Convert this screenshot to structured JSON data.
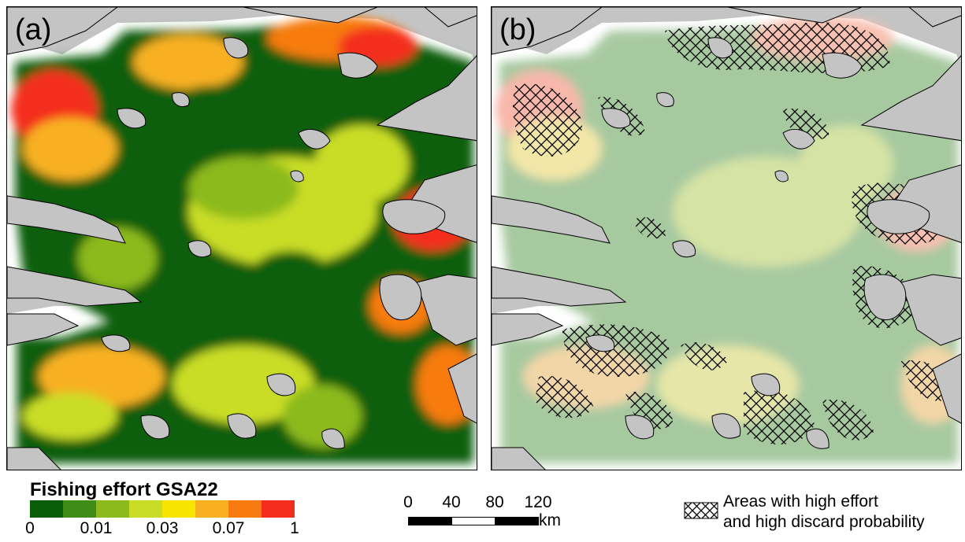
{
  "panels": {
    "a": {
      "label": "(a)"
    },
    "b": {
      "label": "(b)"
    }
  },
  "legend": {
    "title": "Fishing effort GSA22",
    "colors": [
      "#0a5e0a",
      "#3f8c17",
      "#8cba1c",
      "#c9dd26",
      "#f7e400",
      "#f8b020",
      "#f77b10",
      "#f42d1e"
    ],
    "ticks": [
      "0",
      "0.01",
      "0.03",
      "0.07",
      "1"
    ]
  },
  "scale_bar": {
    "labels": [
      "0",
      "40",
      "80",
      "120"
    ],
    "unit": "km"
  },
  "hatch_legend": {
    "line1": "Areas with high effort",
    "line2": "and high discard probability"
  },
  "map_colors": {
    "land": "#c4c4c4",
    "coast": "#ffffff",
    "outline": "#000000"
  }
}
